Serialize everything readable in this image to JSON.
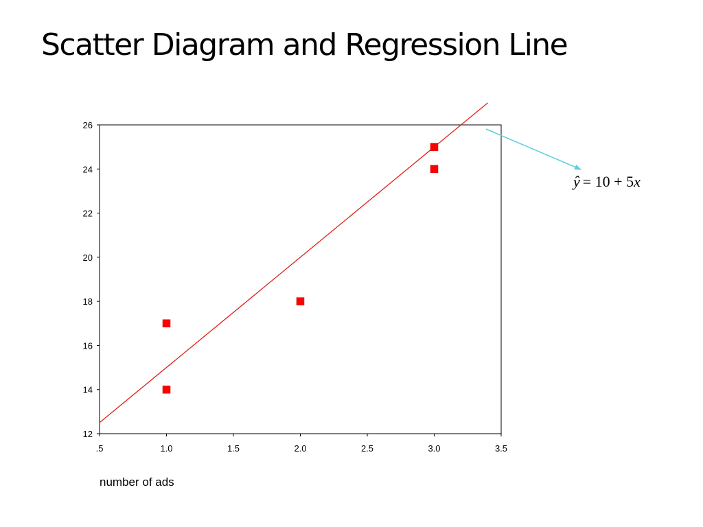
{
  "slide": {
    "title": "Scatter Diagram and Regression Line"
  },
  "equation": {
    "lhs": "ŷ",
    "rhs": "= 10 + 5",
    "var": "x"
  },
  "colors": {
    "points": "#ff0000",
    "line": "#e0201a",
    "arrow": "#5ad0e0",
    "axis": "#000000"
  },
  "chart_data": {
    "type": "scatter",
    "title": "",
    "xlabel": "number of ads",
    "ylabel": "",
    "xlim": [
      0.5,
      3.5
    ],
    "ylim": [
      12,
      26
    ],
    "xticks": [
      0.5,
      1.0,
      1.5,
      2.0,
      2.5,
      3.0,
      3.5
    ],
    "xtick_labels": [
      ".5",
      "1.0",
      "1.5",
      "2.0",
      "2.5",
      "3.0",
      "3.5"
    ],
    "yticks": [
      12,
      14,
      16,
      18,
      20,
      22,
      24,
      26
    ],
    "ytick_labels": [
      "12",
      "14",
      "16",
      "18",
      "20",
      "22",
      "24",
      "26"
    ],
    "grid": false,
    "points": [
      {
        "x": 1,
        "y": 14
      },
      {
        "x": 1,
        "y": 17
      },
      {
        "x": 2,
        "y": 18
      },
      {
        "x": 3,
        "y": 24
      },
      {
        "x": 3,
        "y": 25
      }
    ],
    "regression": {
      "intercept": 10,
      "slope": 5,
      "x_range": [
        0.5,
        3.4
      ]
    }
  }
}
